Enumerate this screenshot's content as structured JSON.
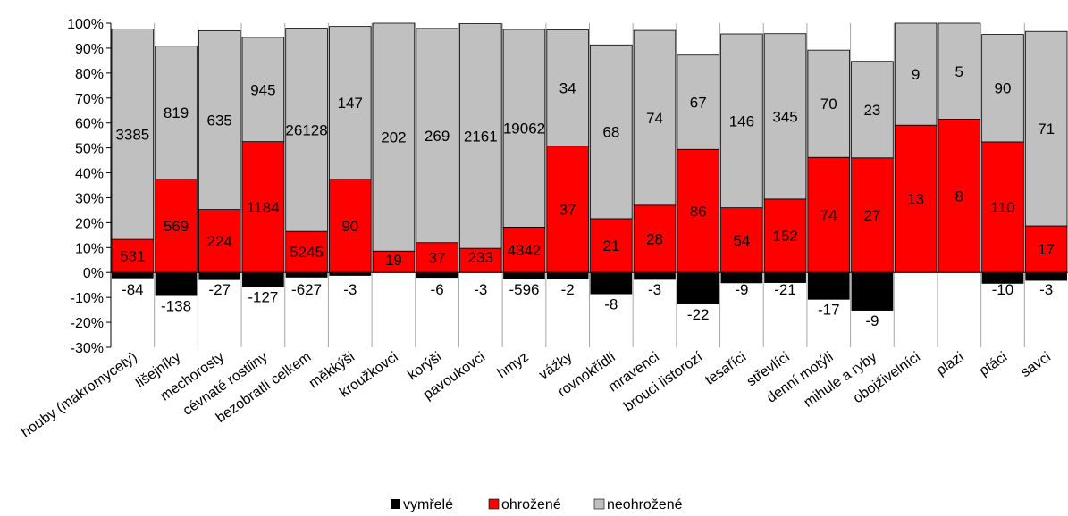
{
  "chart_data": {
    "type": "bar",
    "stacked": true,
    "categories": [
      "houby (makromycety)",
      "lišejníky",
      "mechorosty",
      "cévnaté rostliny",
      "bezobratlí celkem",
      "měkkýši",
      "kroužkovci",
      "korýši",
      "pavoukovci",
      "hmyz",
      "vážky",
      "rovnokřídlí",
      "mravenci",
      "brouci listorozí",
      "tesaříci",
      "střevlíci",
      "denní motýli",
      "mihule a ryby",
      "obojživelníci",
      "plazi",
      "ptáci",
      "savci"
    ],
    "series": [
      {
        "name": "vymřelé",
        "color": "#000000",
        "values": [
          -2.3,
          -9.4,
          -3,
          -5.9,
          -2,
          -1.3,
          0,
          -2.1,
          -0.1,
          -2.5,
          -2.7,
          -8.7,
          -2.9,
          -12.8,
          -4.3,
          -4.2,
          -10.9,
          -15.3,
          0,
          0,
          -4.5,
          -3.3
        ],
        "labels": [
          "-84",
          "-138",
          "-27",
          "-127",
          "-627",
          "-3",
          "",
          "-6",
          "-3",
          "-596",
          "-2",
          "-8",
          "-3",
          "-22",
          "-9",
          "-21",
          "-17",
          "-9",
          "",
          "",
          "-10",
          "-3"
        ]
      },
      {
        "name": "ohrožené",
        "color": "#ff0000",
        "values": [
          13.3,
          37.5,
          25.3,
          52.5,
          16.5,
          37.5,
          8.6,
          12,
          9.7,
          18.2,
          50.7,
          21.6,
          27,
          49.4,
          26,
          29.5,
          46.2,
          46,
          59.1,
          61.5,
          52.4,
          18.7
        ],
        "labels": [
          "531",
          "569",
          "224",
          "1184",
          "5245",
          "90",
          "19",
          "37",
          "233",
          "4342",
          "37",
          "21",
          "28",
          "86",
          "54",
          "152",
          "74",
          "27",
          "13",
          "8",
          "110",
          "17"
        ]
      },
      {
        "name": "neohrožené",
        "color": "#c0c0c0",
        "values": [
          84.4,
          53.3,
          71.7,
          41.8,
          81.5,
          61.2,
          91.4,
          85.9,
          90.1,
          79.3,
          46.6,
          69.7,
          70.1,
          37.8,
          69.7,
          66.3,
          43,
          38.7,
          40.9,
          38.5,
          43.1,
          78
        ],
        "labels": [
          "3385",
          "819",
          "635",
          "945",
          "26128",
          "147",
          "202",
          "269",
          "2161",
          "19062",
          "34",
          "68",
          "74",
          "67",
          "146",
          "345",
          "70",
          "23",
          "9",
          "5",
          "90",
          "71"
        ]
      }
    ],
    "yticks": [
      "100%",
      "90%",
      "80%",
      "70%",
      "60%",
      "50%",
      "40%",
      "30%",
      "20%",
      "10%",
      "0%",
      "-10%",
      "-20%",
      "-30%"
    ],
    "ylim": [
      -30,
      100
    ],
    "legend_position": "bottom"
  }
}
